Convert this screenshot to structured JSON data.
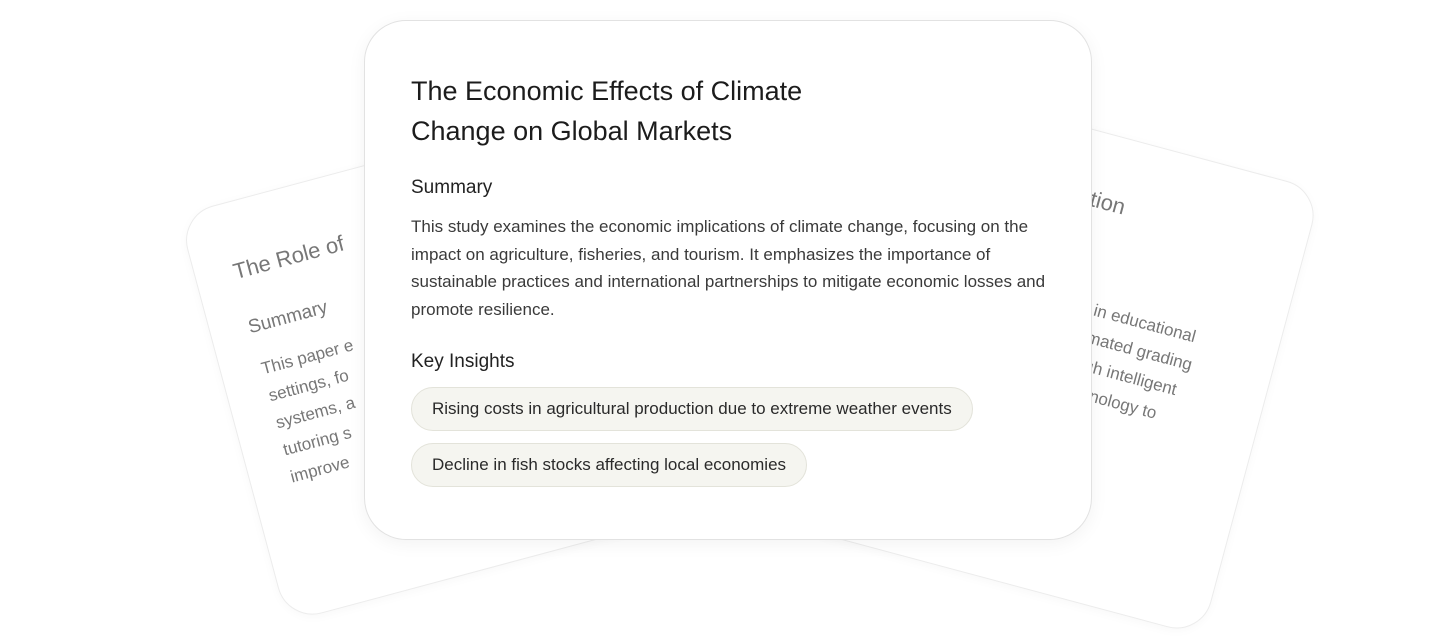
{
  "left_card": {
    "title": "The Role of",
    "section": "Summary",
    "lines": [
      "This paper e",
      "settings, fo",
      "systems, a",
      "tutoring s",
      "improve"
    ]
  },
  "right_card": {
    "title": "tion",
    "lines": [
      "e in educational",
      "tomated grading",
      "ough intelligent",
      "technology to"
    ]
  },
  "main_card": {
    "title": "The Economic Effects of Climate Change on Global Markets",
    "summary_heading": "Summary",
    "summary": "This study examines the economic implications of climate change, focusing on the impact on agriculture, fisheries, and tourism. It emphasizes the importance of sustainable practices and international partnerships to mitigate economic losses and promote resilience.",
    "insights_heading": "Key Insights",
    "insights": [
      "Rising costs in agricultural production due to extreme weather events",
      "Decline in fish stocks affecting local economies"
    ]
  }
}
